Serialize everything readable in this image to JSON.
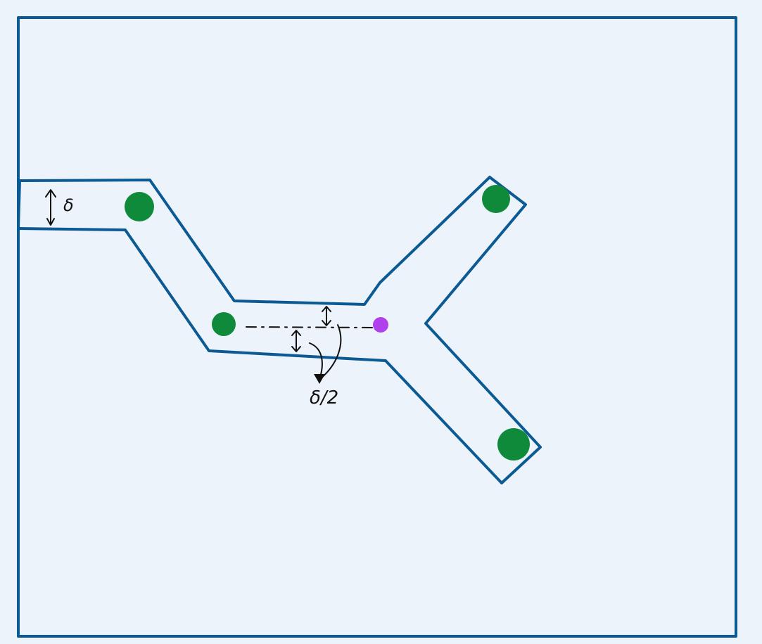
{
  "colors": {
    "background": "#edf3fb",
    "outline": "#0c5a93",
    "node": "#0f8a3a",
    "junction": "#b040ee",
    "annotation": "#111111"
  },
  "labels": {
    "width": "δ",
    "half_width": "δ/2"
  },
  "icons": {
    "node": "green-dot-icon",
    "junction": "purple-dot-icon",
    "double_arrow": "double-arrow-icon"
  }
}
